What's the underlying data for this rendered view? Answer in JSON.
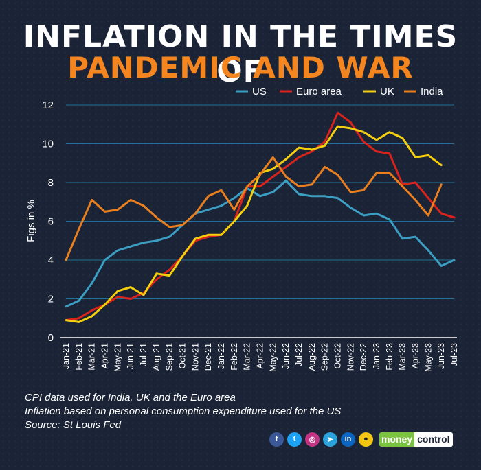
{
  "header": {
    "title_line1": "INFLATION IN THE TIMES OF",
    "title_line2": "PANDEMIC AND WAR"
  },
  "notes": {
    "line1": "CPI data used for India, UK  and the Euro area",
    "line2": "Inflation based on personal consumption expenditure used for the US",
    "line3": "Source: St Louis Fed"
  },
  "footer": {
    "icons": [
      "facebook-icon",
      "twitter-icon",
      "instagram-icon",
      "telegram-icon",
      "linkedin-icon",
      "koo-icon"
    ],
    "brand_part1": "money",
    "brand_part2": "control"
  },
  "colors": {
    "background": "#1b2436",
    "US": "#3d9ec4",
    "Euro area": "#d9231c",
    "UK": "#f5cf0d",
    "India": "#ea7f1f",
    "title_accent": "#f5861f"
  },
  "chart_data": {
    "type": "line",
    "ylabel": "Figs in %",
    "xlabel": "",
    "ylim": [
      0,
      12
    ],
    "yticks": [
      0,
      2,
      4,
      6,
      8,
      10,
      12
    ],
    "grid": true,
    "legend_position": "top-right",
    "categories": [
      "Jan-21",
      "Feb-21",
      "Mar-21",
      "Apr-21",
      "May-21",
      "Jun-21",
      "Jul-21",
      "Aug-21",
      "Sep-21",
      "Oct-21",
      "Nov-21",
      "Dec-21",
      "Jan-22",
      "Feb-22",
      "Mar-22",
      "Apr-22",
      "May-22",
      "Jun-22",
      "Jul-22",
      "Aug-22",
      "Sep-22",
      "Oct-22",
      "Nov-22",
      "Dec-22",
      "Jan-23",
      "Feb-23",
      "Mar-23",
      "Apr-23",
      "May-23",
      "Jun-23",
      "Jul-23"
    ],
    "series": [
      {
        "name": "US",
        "values": [
          1.6,
          1.9,
          2.8,
          4.0,
          4.5,
          4.7,
          4.9,
          5.0,
          5.2,
          5.8,
          6.4,
          6.6,
          6.8,
          7.2,
          7.7,
          7.3,
          7.5,
          8.1,
          7.4,
          7.3,
          7.3,
          7.2,
          6.7,
          6.3,
          6.4,
          6.1,
          5.1,
          5.2,
          4.5,
          3.7,
          4.0
        ]
      },
      {
        "name": "Euro area",
        "values": [
          0.9,
          1.0,
          1.4,
          1.7,
          2.1,
          2.0,
          2.3,
          3.0,
          3.5,
          4.2,
          5.0,
          5.2,
          5.3,
          6.0,
          7.8,
          7.8,
          8.3,
          8.8,
          9.3,
          9.6,
          10.1,
          11.6,
          11.1,
          10.1,
          9.6,
          9.5,
          7.9,
          8.0,
          7.2,
          6.4,
          6.2
        ]
      },
      {
        "name": "UK",
        "values": [
          0.9,
          0.8,
          1.1,
          1.7,
          2.4,
          2.6,
          2.2,
          3.3,
          3.2,
          4.2,
          5.1,
          5.3,
          5.3,
          6.0,
          6.8,
          8.5,
          8.7,
          9.2,
          9.8,
          9.7,
          9.9,
          10.9,
          10.8,
          10.6,
          10.2,
          10.6,
          10.3,
          9.3,
          9.4,
          8.9,
          null
        ]
      },
      {
        "name": "India",
        "values": [
          4.0,
          5.6,
          7.1,
          6.5,
          6.6,
          7.1,
          6.8,
          6.2,
          5.7,
          5.8,
          6.4,
          7.3,
          7.6,
          6.6,
          7.8,
          8.4,
          9.3,
          8.3,
          7.8,
          7.9,
          8.8,
          8.4,
          7.5,
          7.6,
          8.5,
          8.5,
          7.8,
          7.1,
          6.3,
          7.9,
          null
        ]
      }
    ]
  }
}
